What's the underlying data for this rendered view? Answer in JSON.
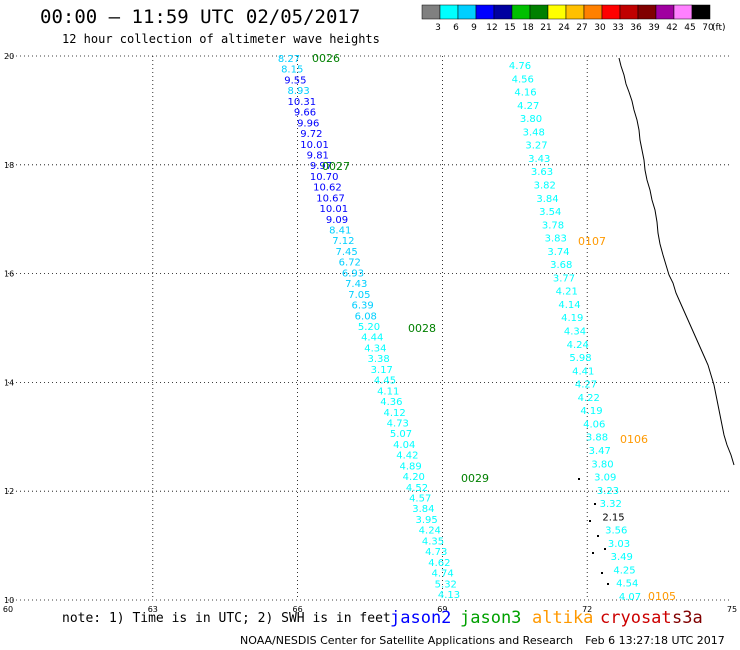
{
  "title": "00:00 – 11:59 UTC 02/05/2017",
  "subtitle": "12 hour collection of altimeter wave heights",
  "colorbar": {
    "unit": "(ft)",
    "colors": [
      "#808080",
      "#00ffff",
      "#00cfff",
      "#0000ff",
      "#0000a0",
      "#00c000",
      "#008000",
      "#ffff00",
      "#ffc000",
      "#ff8000",
      "#ff0000",
      "#c00000",
      "#800000",
      "#a000a0",
      "#ff80ff",
      "#000000"
    ],
    "labels": [
      "3",
      "6",
      "9",
      "12",
      "15",
      "18",
      "21",
      "24",
      "27",
      "30",
      "33",
      "36",
      "39",
      "42",
      "45",
      "70"
    ]
  },
  "axes": {
    "lon_ticks": [
      "60",
      "63",
      "66",
      "69",
      "72",
      "75"
    ],
    "lat_ticks": [
      "10",
      "12",
      "14",
      "16",
      "18",
      "20"
    ]
  },
  "tracks": [
    {
      "id": "0026",
      "color": "#008000"
    },
    {
      "id": "0027",
      "color": "#008000"
    },
    {
      "id": "0028",
      "color": "#008000"
    },
    {
      "id": "0029",
      "color": "#008000"
    },
    {
      "id": "0107",
      "color": "#ff9900"
    },
    {
      "id": "0106",
      "color": "#ff9900"
    },
    {
      "id": "0105",
      "color": "#ff9900"
    }
  ],
  "chart_data": {
    "type": "scatter",
    "title": "00:00 – 11:59 UTC 02/05/2017",
    "subtitle": "12 hour collection of altimeter wave heights",
    "xlim": [
      60,
      75
    ],
    "ylim": [
      10,
      20
    ],
    "track_a": [
      [
        "8.27",
        "#00cfff"
      ],
      [
        "8.15",
        "#00cfff"
      ],
      [
        "9.55",
        "#0000ff"
      ],
      [
        "8.93",
        "#00cfff"
      ],
      [
        "10.31",
        "#0000ff"
      ],
      [
        "9.66",
        "#0000ff"
      ],
      [
        "9.96",
        "#0000ff"
      ],
      [
        "9.72",
        "#0000ff"
      ],
      [
        "10.01",
        "#0000ff"
      ],
      [
        "9.81",
        "#0000ff"
      ],
      [
        "9.97",
        "#0000ff"
      ],
      [
        "10.70",
        "#0000ff"
      ],
      [
        "10.62",
        "#0000ff"
      ],
      [
        "10.67",
        "#0000ff"
      ],
      [
        "10.01",
        "#0000ff"
      ],
      [
        "9.09",
        "#0000ff"
      ],
      [
        "8.41",
        "#00cfff"
      ],
      [
        "7.12",
        "#00cfff"
      ],
      [
        "7.45",
        "#00cfff"
      ],
      [
        "6.72",
        "#00cfff"
      ],
      [
        "6.93",
        "#00cfff"
      ],
      [
        "7.43",
        "#00cfff"
      ],
      [
        "7.05",
        "#00cfff"
      ],
      [
        "6.39",
        "#00cfff"
      ],
      [
        "6.08",
        "#00cfff"
      ],
      [
        "5.20",
        "#00ffff"
      ],
      [
        "4.44",
        "#00ffff"
      ],
      [
        "4.34",
        "#00ffff"
      ],
      [
        "3.38",
        "#00ffff"
      ],
      [
        "3.17",
        "#00ffff"
      ],
      [
        "4.45",
        "#00ffff"
      ],
      [
        "4.11",
        "#00ffff"
      ],
      [
        "4.36",
        "#00ffff"
      ],
      [
        "4.12",
        "#00ffff"
      ],
      [
        "4.73",
        "#00ffff"
      ],
      [
        "5.07",
        "#00ffff"
      ],
      [
        "4.04",
        "#00ffff"
      ],
      [
        "4.42",
        "#00ffff"
      ],
      [
        "4.89",
        "#00ffff"
      ],
      [
        "4.20",
        "#00ffff"
      ],
      [
        "4.52",
        "#00ffff"
      ],
      [
        "4.57",
        "#00ffff"
      ],
      [
        "3.84",
        "#00ffff"
      ],
      [
        "3.95",
        "#00ffff"
      ],
      [
        "4.24",
        "#00ffff"
      ],
      [
        "4.35",
        "#00ffff"
      ],
      [
        "4.73",
        "#00ffff"
      ],
      [
        "4.62",
        "#00ffff"
      ],
      [
        "4.74",
        "#00ffff"
      ],
      [
        "5.32",
        "#00ffff"
      ],
      [
        "4.13",
        "#00ffff"
      ]
    ],
    "track_b": [
      "4.76",
      "4.56",
      "4.16",
      "4.27",
      "3.80",
      "3.48",
      "3.27",
      "3.43",
      "3.63",
      "3.82",
      "3.84",
      "3.54",
      "3.78",
      "3.83",
      "3.74",
      "3.68",
      "3.77",
      "4.21",
      "4.14",
      "4.19",
      "4.34",
      "4.24",
      "5.98",
      "4.41",
      "4.27",
      "4.22",
      "4.19",
      "4.06",
      "3.88",
      "3.47",
      "3.80",
      "3.09",
      "3.23",
      "3.32",
      "2.15",
      "3.56",
      "3.03",
      "3.49",
      "4.25",
      "4.54",
      "4.07"
    ]
  },
  "legend": {
    "note": "note:  1) Time is in UTC;  2) SWH is in feet",
    "satellites": [
      {
        "name": "jason2",
        "color": "#0000ff"
      },
      {
        "name": "jason3",
        "color": "#00a000"
      },
      {
        "name": "altika",
        "color": "#ff9900"
      },
      {
        "name": "cryosat",
        "color": "#cc0000"
      },
      {
        "name": "s3a",
        "color": "#800000"
      }
    ]
  },
  "footer": {
    "center": "NOAA/NESDIS Center for Satellite Applications and Research",
    "timestamp": "Feb  6 13:27:18 UTC 2017"
  }
}
